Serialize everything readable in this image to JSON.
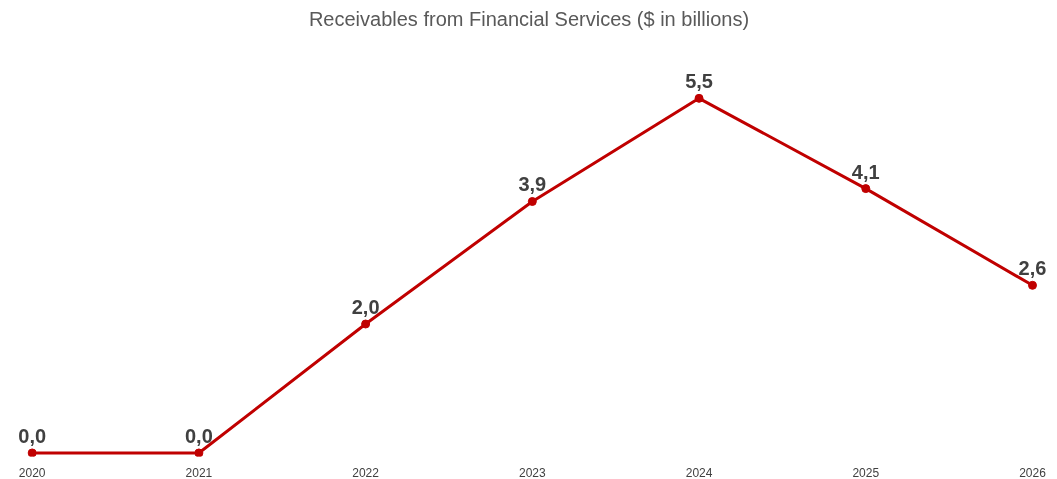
{
  "chart_data": {
    "type": "line",
    "title": "Receivables from Financial Services ($ in billions)",
    "categories": [
      "2020",
      "2021",
      "2022",
      "2023",
      "2024",
      "2025",
      "2026"
    ],
    "series": [
      {
        "color": "#c00000",
        "values": [
          0.0,
          0.0,
          2.0,
          3.9,
          5.5,
          4.1,
          2.6
        ],
        "value_labels": [
          "0,0",
          "0,0",
          "2,0",
          "3,9",
          "5,5",
          "4,1",
          "2,6"
        ]
      }
    ],
    "marker": "circle",
    "line_style": "solid",
    "grid": false
  }
}
